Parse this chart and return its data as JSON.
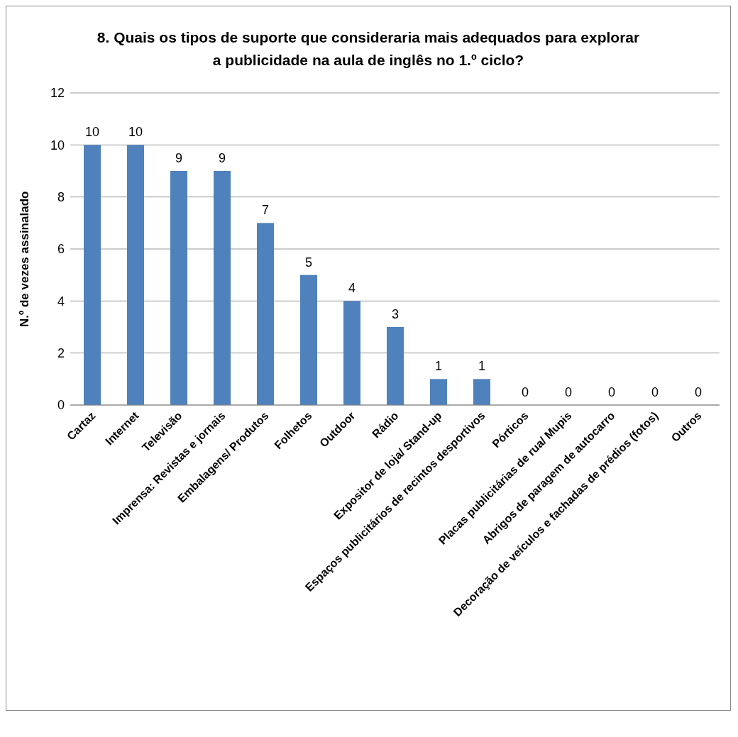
{
  "chart_data": {
    "type": "bar",
    "title": "8. Quais os tipos de suporte que consideraria mais adequados para explorar a publicidade na aula de inglês no 1.º ciclo?",
    "ylabel": "N.º de vezes assinalado",
    "categories": [
      "Cartaz",
      "Internet",
      "Televisão",
      "Imprensa: Revistas e jornais",
      "Embalagens/ Produtos",
      "Folhetos",
      "Outdoor",
      "Rádio",
      "Expositor de loja/ Stand-up",
      "Espaços publicitários de recintos desportivos",
      "Pórticos",
      "Placas publicitárias de rua/ Mupis",
      "Abrigos de paragem de autocarro",
      "Decoração de veículos e fachadas de prédios (fotos)",
      "Outros"
    ],
    "values": [
      10,
      10,
      9,
      9,
      7,
      5,
      4,
      3,
      1,
      1,
      0,
      0,
      0,
      0,
      0
    ],
    "color": "#4f81bd",
    "ylim": [
      0,
      12
    ],
    "yticks": [
      0,
      2,
      4,
      6,
      8,
      10,
      12
    ],
    "grid": "y",
    "data_labels": true,
    "legend": false
  }
}
